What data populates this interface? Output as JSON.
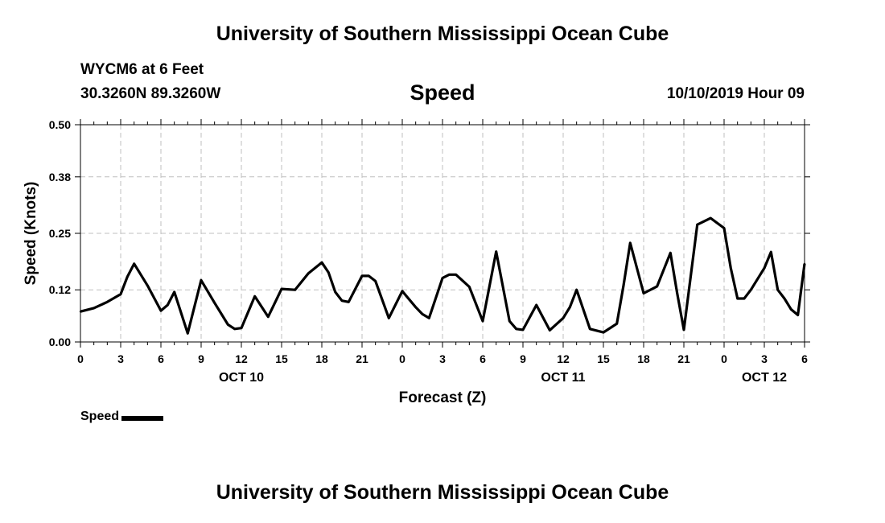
{
  "header": {
    "title": "University of Southern Mississippi Ocean Cube",
    "station": "WYCM6 at 6 Feet",
    "coords": "30.3260N 89.3260W",
    "subtitle": "Speed",
    "datetime": "10/10/2019 Hour 09"
  },
  "footer": {
    "title": "University of Southern Mississippi Ocean Cube"
  },
  "legend": {
    "label": "Speed",
    "color": "#000000"
  },
  "chart_data": {
    "type": "line",
    "title": "Speed",
    "xlabel": "Forecast (Z)",
    "ylabel": "Speed (Knots)",
    "xlim": [
      0,
      54
    ],
    "ylim": [
      0,
      0.5
    ],
    "y_ticks": [
      0.0,
      0.12,
      0.25,
      0.38,
      0.5
    ],
    "y_tick_labels": [
      "0.00",
      "0.12",
      "0.25",
      "0.38",
      "0.50"
    ],
    "x_ticks": [
      0,
      3,
      6,
      9,
      12,
      15,
      18,
      21,
      24,
      27,
      30,
      33,
      36,
      39,
      42,
      45,
      48,
      51,
      54
    ],
    "x_tick_labels": [
      "0",
      "3",
      "6",
      "9",
      "12",
      "15",
      "18",
      "21",
      "0",
      "3",
      "6",
      "9",
      "12",
      "15",
      "18",
      "21",
      "0",
      "3",
      "6"
    ],
    "day_labels": [
      {
        "x": 12,
        "label": "OCT 10"
      },
      {
        "x": 36,
        "label": "OCT 11"
      },
      {
        "x": 51,
        "label": "OCT 12"
      }
    ],
    "grid": true,
    "series": [
      {
        "name": "Speed",
        "color": "#000000",
        "x": [
          0,
          1,
          2,
          3,
          3.5,
          4,
          5,
          6,
          6.5,
          7,
          8,
          9,
          10,
          11,
          11.5,
          12,
          13,
          14,
          15,
          16,
          17,
          18,
          18.5,
          19,
          19.5,
          20,
          21,
          21.5,
          22,
          23,
          24,
          25,
          25.5,
          26,
          27,
          27.5,
          28,
          29,
          30,
          31,
          32,
          32.5,
          33,
          34,
          35,
          36,
          36.5,
          37,
          38,
          39,
          40,
          40.5,
          41,
          42,
          43,
          44,
          44.5,
          45,
          46,
          47,
          48,
          48.5,
          49,
          49.5,
          50,
          51,
          51.5,
          52,
          52.5,
          53,
          53.5,
          54
        ],
        "values": [
          0.07,
          0.078,
          0.092,
          0.11,
          0.15,
          0.18,
          0.13,
          0.072,
          0.085,
          0.115,
          0.02,
          0.142,
          0.09,
          0.04,
          0.03,
          0.032,
          0.105,
          0.058,
          0.122,
          0.12,
          0.158,
          0.183,
          0.16,
          0.115,
          0.095,
          0.092,
          0.152,
          0.152,
          0.14,
          0.055,
          0.117,
          0.08,
          0.064,
          0.055,
          0.147,
          0.155,
          0.155,
          0.127,
          0.048,
          0.208,
          0.048,
          0.03,
          0.028,
          0.085,
          0.027,
          0.055,
          0.08,
          0.12,
          0.03,
          0.022,
          0.042,
          0.13,
          0.228,
          0.112,
          0.128,
          0.205,
          0.112,
          0.028,
          0.27,
          0.285,
          0.262,
          0.17,
          0.1,
          0.1,
          0.12,
          0.17,
          0.207,
          0.12,
          0.1,
          0.075,
          0.062,
          0.18
        ]
      }
    ]
  }
}
